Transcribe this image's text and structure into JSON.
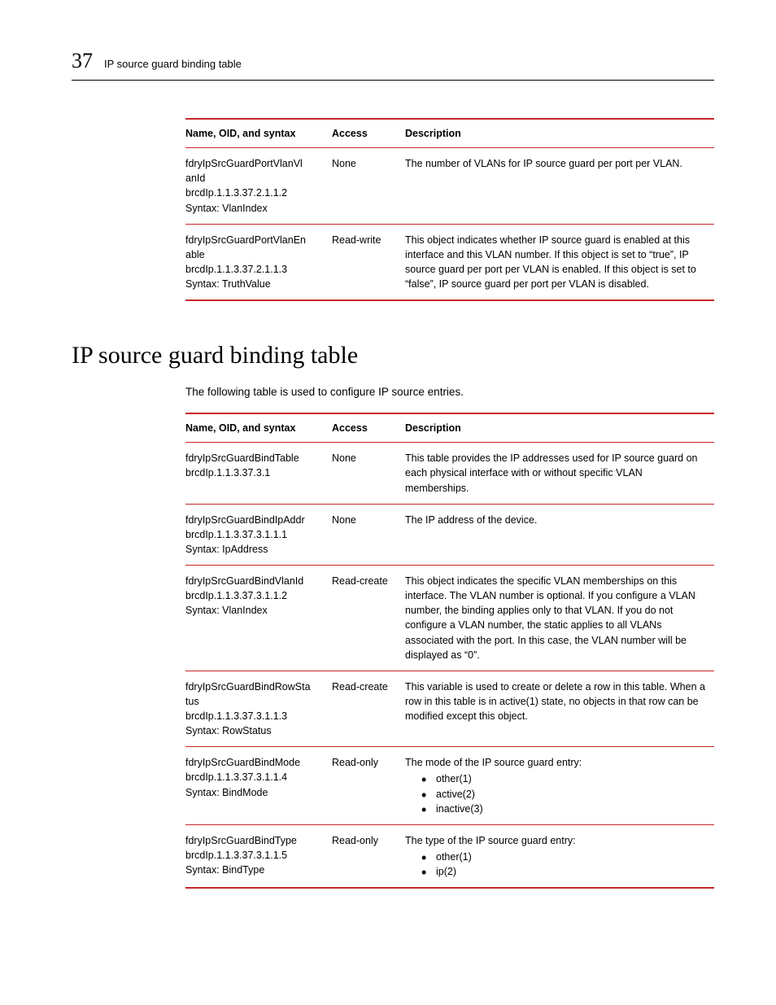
{
  "header": {
    "page_number": "37",
    "title": "IP source guard binding table"
  },
  "table1": {
    "columns": [
      "Name, OID, and syntax",
      "Access",
      "Description"
    ],
    "rows": [
      {
        "name_lines": [
          "fdryIpSrcGuardPortVlanVlanId",
          "brcdIp.1.1.3.37.2.1.1.2",
          "Syntax: VlanIndex"
        ],
        "access": "None",
        "description": "The number of VLANs for IP source guard per port per VLAN."
      },
      {
        "name_lines": [
          "fdryIpSrcGuardPortVlanEnable",
          "brcdIp.1.1.3.37.2.1.1.3",
          "Syntax: TruthValue"
        ],
        "access": "Read-write",
        "description": "This object indicates whether IP source guard is enabled at this interface and this VLAN number. If this object is set to “true”, IP source guard per port per VLAN is enabled. If this object is set to “false”, IP source guard per port per VLAN is disabled."
      }
    ]
  },
  "section": {
    "heading": "IP source guard binding table",
    "intro": "The following table is used to configure IP source entries."
  },
  "table2": {
    "columns": [
      "Name, OID, and syntax",
      "Access",
      "Description"
    ],
    "rows": [
      {
        "name_lines": [
          "fdryIpSrcGuardBindTable",
          "brcdIp.1.1.3.37.3.1"
        ],
        "access": "None",
        "description": "This table provides the IP addresses used for IP source guard on each physical interface with or without specific VLAN memberships."
      },
      {
        "name_lines": [
          "fdryIpSrcGuardBindIpAddr",
          "brcdIp.1.1.3.37.3.1.1.1",
          "Syntax: IpAddress"
        ],
        "access": "None",
        "description": "The IP address of the device."
      },
      {
        "name_lines": [
          "fdryIpSrcGuardBindVlanId",
          "brcdIp.1.1.3.37.3.1.1.2",
          "Syntax: VlanIndex"
        ],
        "access": "Read-create",
        "description": "This object indicates the specific VLAN memberships on this interface. The VLAN number is optional. If you configure a VLAN number, the binding applies only to that VLAN. If you do not configure a VLAN number, the static applies to all VLANs associated with the port. In this case, the VLAN number will be displayed as “0”."
      },
      {
        "name_lines": [
          "fdryIpSrcGuardBindRowStatus",
          "brcdIp.1.1.3.37.3.1.1.3",
          "Syntax: RowStatus"
        ],
        "access": "Read-create",
        "description": "This variable is used to create or delete a row in this table. When a row in this table is in active(1) state, no objects in that row can be modified except this object."
      },
      {
        "name_lines": [
          "fdryIpSrcGuardBindMode",
          "brcdIp.1.1.3.37.3.1.1.4",
          "Syntax: BindMode"
        ],
        "access": "Read-only",
        "desc_intro": "The mode of the IP source guard entry:",
        "bullets": [
          "other(1)",
          "active(2)",
          "inactive(3)"
        ]
      },
      {
        "name_lines": [
          "fdryIpSrcGuardBindType",
          "brcdIp.1.1.3.37.3.1.1.5",
          "Syntax: BindType"
        ],
        "access": "Read-only",
        "desc_intro": "The type of the IP source guard entry:",
        "bullets": [
          "other(1)",
          "ip(2)"
        ]
      }
    ]
  },
  "name_break_width": 24
}
